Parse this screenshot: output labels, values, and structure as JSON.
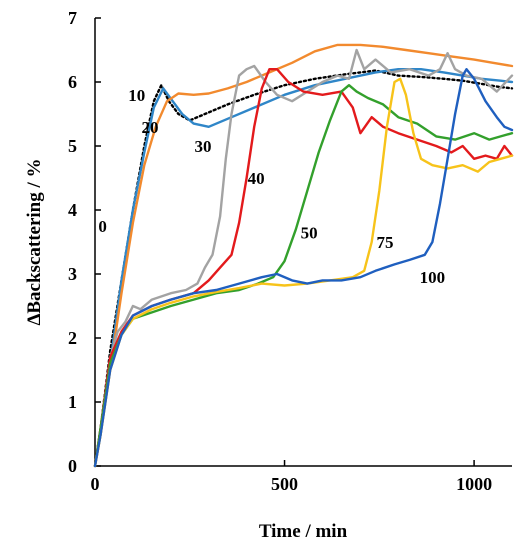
{
  "chart_data": {
    "type": "line",
    "title": "",
    "xlabel": "Time / min",
    "ylabel": "ΔBackscattering  / %",
    "xlim": [
      0,
      1100
    ],
    "ylim": [
      0,
      7
    ],
    "x_ticks": [
      0,
      500,
      1000
    ],
    "y_ticks": [
      0,
      1,
      2,
      3,
      4,
      5,
      6,
      7
    ],
    "grid": false,
    "legend": "none",
    "series": [
      {
        "name": "0",
        "color": "#000000",
        "dash": "dotted",
        "points": [
          [
            0,
            0
          ],
          [
            15,
            0.6
          ],
          [
            40,
            1.8
          ],
          [
            70,
            2.9
          ],
          [
            100,
            4.0
          ],
          [
            130,
            5.0
          ],
          [
            155,
            5.7
          ],
          [
            175,
            5.95
          ],
          [
            195,
            5.7
          ],
          [
            220,
            5.5
          ],
          [
            250,
            5.4
          ],
          [
            290,
            5.5
          ],
          [
            350,
            5.65
          ],
          [
            420,
            5.8
          ],
          [
            500,
            5.95
          ],
          [
            580,
            6.05
          ],
          [
            660,
            6.12
          ],
          [
            740,
            6.18
          ],
          [
            800,
            6.1
          ],
          [
            860,
            6.08
          ],
          [
            920,
            6.05
          ],
          [
            970,
            6.02
          ],
          [
            1020,
            5.97
          ],
          [
            1060,
            5.93
          ],
          [
            1100,
            5.9
          ]
        ]
      },
      {
        "name": "10",
        "color": "#2f86c8",
        "dash": "solid",
        "points": [
          [
            0,
            0
          ],
          [
            15,
            0.5
          ],
          [
            40,
            1.6
          ],
          [
            70,
            2.9
          ],
          [
            100,
            4.0
          ],
          [
            130,
            4.9
          ],
          [
            155,
            5.6
          ],
          [
            180,
            5.9
          ],
          [
            205,
            5.7
          ],
          [
            230,
            5.5
          ],
          [
            260,
            5.35
          ],
          [
            300,
            5.3
          ],
          [
            360,
            5.45
          ],
          [
            420,
            5.6
          ],
          [
            500,
            5.8
          ],
          [
            580,
            5.95
          ],
          [
            660,
            6.05
          ],
          [
            740,
            6.15
          ],
          [
            800,
            6.2
          ],
          [
            860,
            6.2
          ],
          [
            920,
            6.15
          ],
          [
            970,
            6.1
          ],
          [
            1020,
            6.05
          ],
          [
            1070,
            6.02
          ],
          [
            1100,
            6.0
          ]
        ]
      },
      {
        "name": "20",
        "color": "#f28a2e",
        "dash": "solid",
        "points": [
          [
            0,
            0
          ],
          [
            15,
            0.5
          ],
          [
            40,
            1.5
          ],
          [
            70,
            2.7
          ],
          [
            100,
            3.8
          ],
          [
            130,
            4.7
          ],
          [
            160,
            5.3
          ],
          [
            190,
            5.7
          ],
          [
            220,
            5.82
          ],
          [
            260,
            5.8
          ],
          [
            300,
            5.82
          ],
          [
            350,
            5.9
          ],
          [
            400,
            6.0
          ],
          [
            460,
            6.15
          ],
          [
            520,
            6.3
          ],
          [
            580,
            6.48
          ],
          [
            640,
            6.58
          ],
          [
            700,
            6.58
          ],
          [
            760,
            6.55
          ],
          [
            820,
            6.5
          ],
          [
            880,
            6.45
          ],
          [
            940,
            6.4
          ],
          [
            1000,
            6.35
          ],
          [
            1050,
            6.3
          ],
          [
            1100,
            6.25
          ]
        ]
      },
      {
        "name": "30",
        "color": "#a3a3a3",
        "dash": "solid",
        "points": [
          [
            0,
            0
          ],
          [
            15,
            0.6
          ],
          [
            40,
            1.7
          ],
          [
            60,
            2.1
          ],
          [
            80,
            2.25
          ],
          [
            100,
            2.5
          ],
          [
            120,
            2.45
          ],
          [
            150,
            2.6
          ],
          [
            200,
            2.7
          ],
          [
            240,
            2.75
          ],
          [
            270,
            2.85
          ],
          [
            290,
            3.1
          ],
          [
            310,
            3.3
          ],
          [
            330,
            3.9
          ],
          [
            345,
            4.8
          ],
          [
            360,
            5.5
          ],
          [
            380,
            6.1
          ],
          [
            400,
            6.2
          ],
          [
            420,
            6.25
          ],
          [
            450,
            6.0
          ],
          [
            480,
            5.8
          ],
          [
            520,
            5.7
          ],
          [
            560,
            5.85
          ],
          [
            600,
            6.0
          ],
          [
            640,
            6.1
          ],
          [
            670,
            6.05
          ],
          [
            690,
            6.5
          ],
          [
            710,
            6.2
          ],
          [
            740,
            6.35
          ],
          [
            780,
            6.15
          ],
          [
            830,
            6.2
          ],
          [
            880,
            6.1
          ],
          [
            910,
            6.2
          ],
          [
            930,
            6.45
          ],
          [
            950,
            6.2
          ],
          [
            980,
            6.1
          ],
          [
            1020,
            6.05
          ],
          [
            1060,
            5.85
          ],
          [
            1100,
            6.1
          ]
        ]
      },
      {
        "name": "40",
        "color": "#e31a1c",
        "dash": "solid",
        "points": [
          [
            0,
            0
          ],
          [
            15,
            0.6
          ],
          [
            40,
            1.7
          ],
          [
            70,
            2.1
          ],
          [
            100,
            2.35
          ],
          [
            150,
            2.5
          ],
          [
            200,
            2.6
          ],
          [
            260,
            2.7
          ],
          [
            300,
            2.9
          ],
          [
            330,
            3.1
          ],
          [
            360,
            3.3
          ],
          [
            380,
            3.8
          ],
          [
            400,
            4.5
          ],
          [
            420,
            5.3
          ],
          [
            440,
            5.9
          ],
          [
            460,
            6.2
          ],
          [
            480,
            6.2
          ],
          [
            510,
            6.0
          ],
          [
            550,
            5.85
          ],
          [
            600,
            5.8
          ],
          [
            650,
            5.85
          ],
          [
            680,
            5.6
          ],
          [
            700,
            5.2
          ],
          [
            730,
            5.45
          ],
          [
            760,
            5.3
          ],
          [
            800,
            5.2
          ],
          [
            850,
            5.1
          ],
          [
            900,
            5.0
          ],
          [
            940,
            4.9
          ],
          [
            970,
            5.0
          ],
          [
            1000,
            4.8
          ],
          [
            1030,
            4.85
          ],
          [
            1060,
            4.8
          ],
          [
            1080,
            5.0
          ],
          [
            1100,
            4.85
          ]
        ]
      },
      {
        "name": "50",
        "color": "#33a02c",
        "dash": "solid",
        "points": [
          [
            0,
            0
          ],
          [
            15,
            0.6
          ],
          [
            40,
            1.6
          ],
          [
            70,
            2.05
          ],
          [
            100,
            2.3
          ],
          [
            150,
            2.4
          ],
          [
            200,
            2.5
          ],
          [
            260,
            2.6
          ],
          [
            320,
            2.7
          ],
          [
            380,
            2.75
          ],
          [
            430,
            2.85
          ],
          [
            470,
            2.95
          ],
          [
            500,
            3.2
          ],
          [
            530,
            3.7
          ],
          [
            560,
            4.3
          ],
          [
            590,
            4.9
          ],
          [
            620,
            5.4
          ],
          [
            650,
            5.85
          ],
          [
            670,
            5.95
          ],
          [
            690,
            5.85
          ],
          [
            720,
            5.75
          ],
          [
            760,
            5.65
          ],
          [
            800,
            5.45
          ],
          [
            850,
            5.35
          ],
          [
            900,
            5.15
          ],
          [
            950,
            5.1
          ],
          [
            1000,
            5.2
          ],
          [
            1040,
            5.1
          ],
          [
            1070,
            5.15
          ],
          [
            1100,
            5.2
          ]
        ]
      },
      {
        "name": "75",
        "color": "#f7c31a",
        "dash": "solid",
        "points": [
          [
            0,
            0
          ],
          [
            15,
            0.5
          ],
          [
            40,
            1.5
          ],
          [
            70,
            2.05
          ],
          [
            100,
            2.3
          ],
          [
            150,
            2.45
          ],
          [
            200,
            2.55
          ],
          [
            260,
            2.65
          ],
          [
            320,
            2.72
          ],
          [
            380,
            2.78
          ],
          [
            440,
            2.85
          ],
          [
            500,
            2.82
          ],
          [
            560,
            2.85
          ],
          [
            620,
            2.9
          ],
          [
            680,
            2.95
          ],
          [
            710,
            3.05
          ],
          [
            730,
            3.5
          ],
          [
            750,
            4.3
          ],
          [
            770,
            5.3
          ],
          [
            790,
            6.0
          ],
          [
            805,
            6.05
          ],
          [
            820,
            5.8
          ],
          [
            840,
            5.2
          ],
          [
            860,
            4.8
          ],
          [
            890,
            4.7
          ],
          [
            930,
            4.65
          ],
          [
            970,
            4.7
          ],
          [
            1010,
            4.6
          ],
          [
            1040,
            4.75
          ],
          [
            1070,
            4.8
          ],
          [
            1100,
            4.85
          ]
        ]
      },
      {
        "name": "100",
        "color": "#1f5fbf",
        "dash": "solid",
        "points": [
          [
            0,
            0
          ],
          [
            15,
            0.5
          ],
          [
            40,
            1.5
          ],
          [
            70,
            2.05
          ],
          [
            100,
            2.35
          ],
          [
            150,
            2.5
          ],
          [
            200,
            2.6
          ],
          [
            260,
            2.7
          ],
          [
            320,
            2.75
          ],
          [
            380,
            2.85
          ],
          [
            440,
            2.95
          ],
          [
            480,
            3.0
          ],
          [
            520,
            2.9
          ],
          [
            560,
            2.85
          ],
          [
            600,
            2.9
          ],
          [
            650,
            2.9
          ],
          [
            700,
            2.95
          ],
          [
            740,
            3.05
          ],
          [
            790,
            3.15
          ],
          [
            830,
            3.22
          ],
          [
            870,
            3.3
          ],
          [
            890,
            3.5
          ],
          [
            910,
            4.1
          ],
          [
            930,
            4.8
          ],
          [
            950,
            5.5
          ],
          [
            970,
            6.1
          ],
          [
            980,
            6.2
          ],
          [
            1000,
            6.05
          ],
          [
            1030,
            5.7
          ],
          [
            1060,
            5.45
          ],
          [
            1080,
            5.3
          ],
          [
            1100,
            5.25
          ]
        ]
      }
    ],
    "series_labels": [
      {
        "text": "0",
        "x": 20,
        "y": 3.75
      },
      {
        "text": "10",
        "x": 110,
        "y": 5.8
      },
      {
        "text": "20",
        "x": 145,
        "y": 5.3
      },
      {
        "text": "30",
        "x": 285,
        "y": 5.0
      },
      {
        "text": "40",
        "x": 425,
        "y": 4.5
      },
      {
        "text": "50",
        "x": 565,
        "y": 3.65
      },
      {
        "text": "75",
        "x": 765,
        "y": 3.5
      },
      {
        "text": "100",
        "x": 890,
        "y": 2.95
      }
    ]
  }
}
